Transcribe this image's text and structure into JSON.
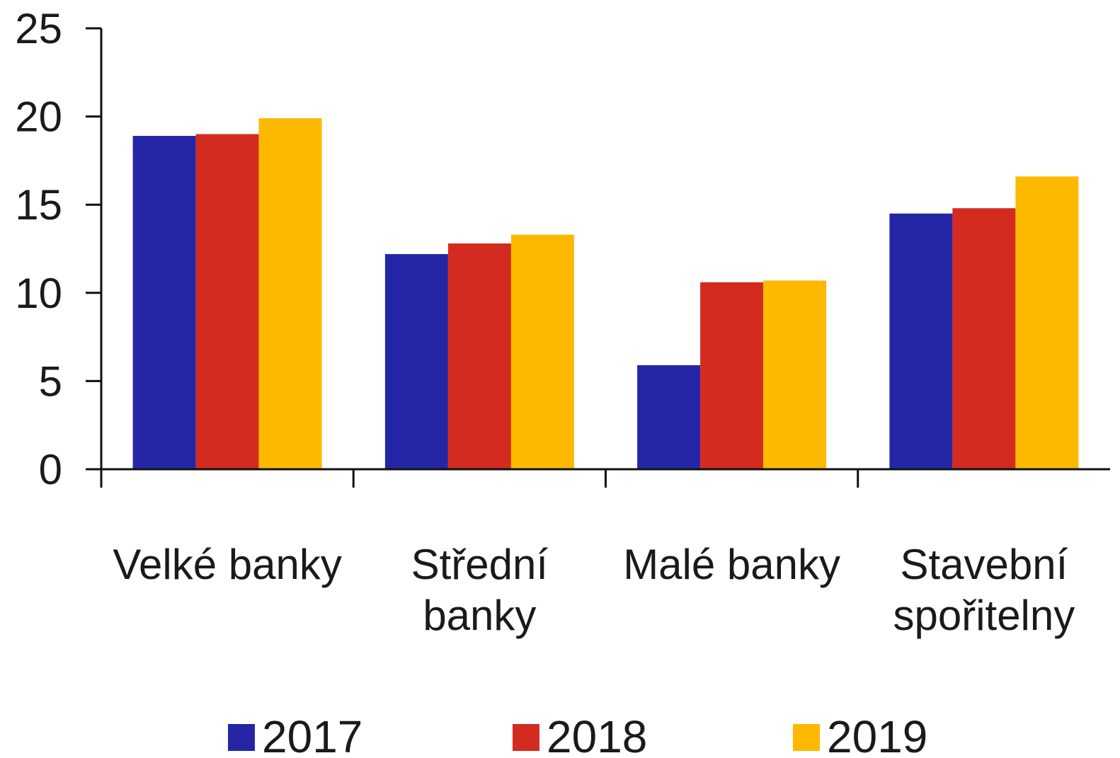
{
  "chart_data": {
    "type": "bar",
    "title": "",
    "xlabel": "",
    "ylabel": "",
    "ylim": [
      0,
      25
    ],
    "yticks": [
      0,
      5,
      10,
      15,
      20,
      25
    ],
    "grid": false,
    "legend_position": "bottom",
    "categories": [
      [
        "Velké banky"
      ],
      [
        "Střední",
        "banky"
      ],
      [
        "Malé banky"
      ],
      [
        "Stavební",
        "spořitelny"
      ]
    ],
    "series": [
      {
        "name": "2017",
        "color": "#2526a6",
        "values": [
          18.9,
          12.2,
          5.9,
          14.5
        ]
      },
      {
        "name": "2018",
        "color": "#d42b20",
        "values": [
          19.0,
          12.8,
          10.6,
          14.8
        ]
      },
      {
        "name": "2019",
        "color": "#fdb900",
        "values": [
          19.9,
          13.3,
          10.7,
          16.6
        ]
      }
    ]
  }
}
